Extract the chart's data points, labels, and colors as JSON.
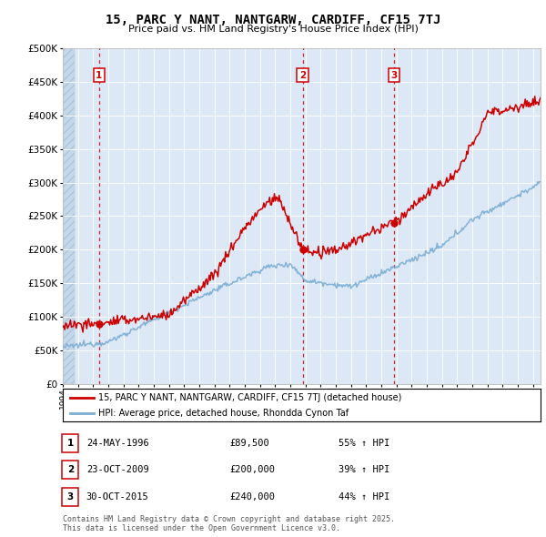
{
  "title": "15, PARC Y NANT, NANTGARW, CARDIFF, CF15 7TJ",
  "subtitle": "Price paid vs. HM Land Registry's House Price Index (HPI)",
  "sale_label": "15, PARC Y NANT, NANTGARW, CARDIFF, CF15 7TJ (detached house)",
  "hpi_label": "HPI: Average price, detached house, Rhondda Cynon Taf",
  "transactions": [
    {
      "num": 1,
      "date": "24-MAY-1996",
      "price": 89500,
      "pct": "55%",
      "dir": "↑"
    },
    {
      "num": 2,
      "date": "23-OCT-2009",
      "price": 200000,
      "pct": "39%",
      "dir": "↑"
    },
    {
      "num": 3,
      "date": "30-OCT-2015",
      "price": 240000,
      "pct": "44%",
      "dir": "↑"
    }
  ],
  "transaction_years": [
    1996.39,
    2009.81,
    2015.83
  ],
  "sale_color": "#cc0000",
  "hpi_color": "#7aadd4",
  "background_plot": "#dce8f5",
  "ylim": [
    0,
    500000
  ],
  "xlim_start": 1994.0,
  "xlim_end": 2025.5,
  "footer": "Contains HM Land Registry data © Crown copyright and database right 2025.\nThis data is licensed under the Open Government Licence v3.0."
}
